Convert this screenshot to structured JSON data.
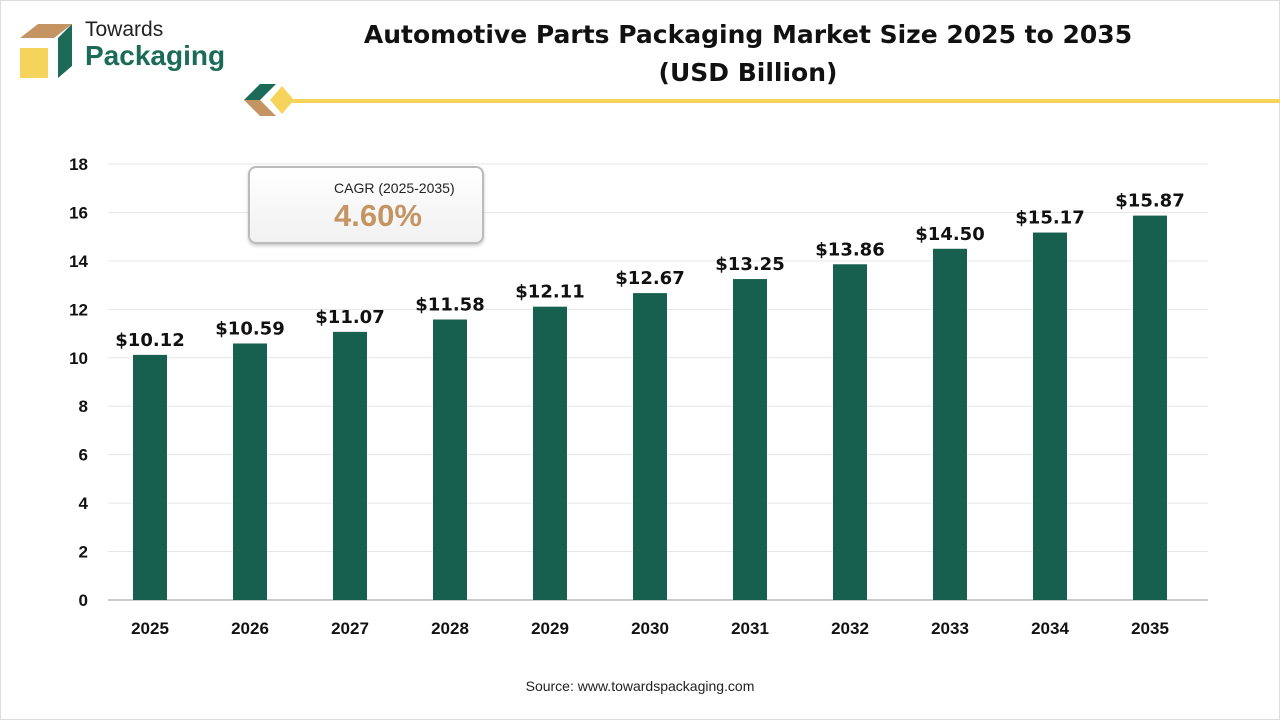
{
  "logo": {
    "line1": "Towards",
    "line2": "Packaging"
  },
  "chart_data": {
    "type": "bar",
    "title": "Automotive Parts Packaging Market Size 2025 to 2035",
    "subtitle": "(USD Billion)",
    "categories": [
      "2025",
      "2026",
      "2027",
      "2028",
      "2029",
      "2030",
      "2031",
      "2032",
      "2033",
      "2034",
      "2035"
    ],
    "values": [
      10.12,
      10.59,
      11.07,
      11.58,
      12.11,
      12.67,
      13.25,
      13.86,
      14.5,
      15.17,
      15.87
    ],
    "data_labels": [
      "$10.12",
      "$10.59",
      "$11.07",
      "$11.58",
      "$12.11",
      "$12.67",
      "$13.25",
      "$13.86",
      "$14.50",
      "$15.17",
      "$15.87"
    ],
    "yticks": [
      "0",
      "2",
      "4",
      "6",
      "8",
      "10",
      "12",
      "14",
      "16",
      "18"
    ],
    "ylim": [
      0,
      18
    ],
    "grid": true,
    "bar_color": "#17604f"
  },
  "cagr": {
    "label": "CAGR (2025-2035)",
    "value": "4.60%"
  },
  "source": "Source: www.towardspackaging.com",
  "colors": {
    "brand_green": "#1c6b58",
    "brand_yellow": "#f6d35a",
    "brand_tan": "#c49463"
  }
}
